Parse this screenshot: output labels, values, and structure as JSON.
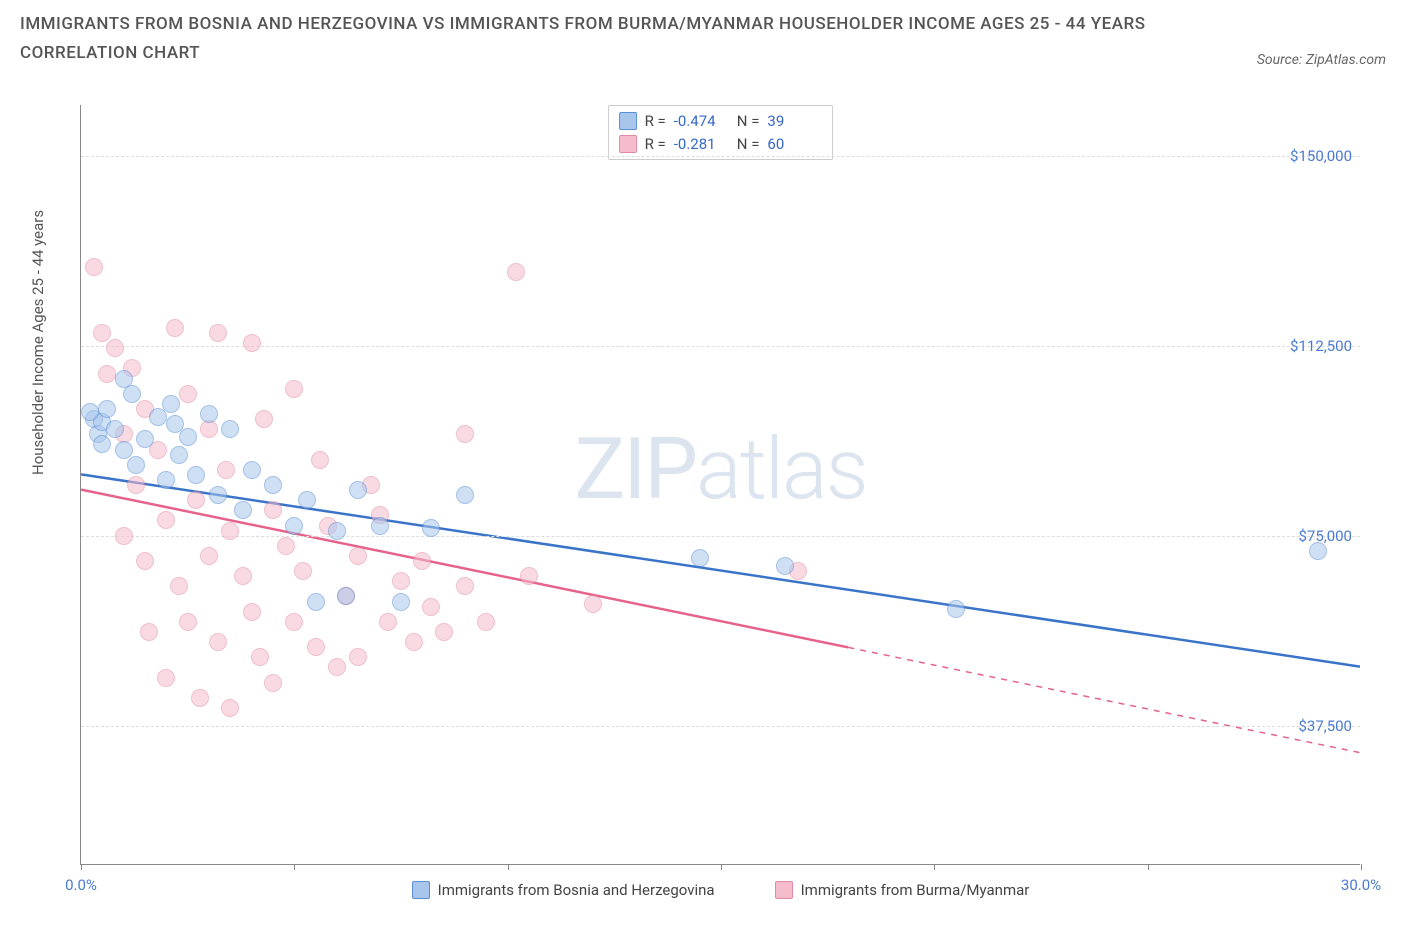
{
  "title": "IMMIGRANTS FROM BOSNIA AND HERZEGOVINA VS IMMIGRANTS FROM BURMA/MYANMAR HOUSEHOLDER INCOME AGES 25 - 44 YEARS CORRELATION CHART",
  "source": "Source: ZipAtlas.com",
  "watermark_a": "ZIP",
  "watermark_b": "atlas",
  "chart": {
    "type": "scatter",
    "ylabel": "Householder Income Ages 25 - 44 years",
    "xlim": [
      0,
      30
    ],
    "ylim": [
      10000,
      160000
    ],
    "xtick_positions": [
      0,
      5,
      10,
      15,
      20,
      25,
      30
    ],
    "xtick_labels": {
      "0": "0.0%",
      "30": "30.0%"
    },
    "ytick_positions": [
      37500,
      75000,
      112500,
      150000
    ],
    "ytick_labels": [
      "$37,500",
      "$75,000",
      "$112,500",
      "$150,000"
    ],
    "background_color": "#ffffff",
    "grid_color": "#dddddd",
    "axis_color": "#888888",
    "tick_label_color": "#4a7bd0",
    "point_radius": 9,
    "point_opacity": 0.55,
    "series": [
      {
        "name": "Immigrants from Bosnia and Herzegovina",
        "fill": "#a8c5ec",
        "stroke": "#5a8fd6",
        "line_color": "#3a74c9",
        "line_width": 2.5,
        "r_label": "R =",
        "r_value": "-0.474",
        "n_label": "N =",
        "n_value": "39",
        "trend": {
          "x1": 0,
          "y1": 87000,
          "x2": 30,
          "y2": 49000,
          "dash_from_x": 30
        },
        "points": [
          [
            0.3,
            98000
          ],
          [
            0.4,
            95000
          ],
          [
            0.5,
            97500
          ],
          [
            0.5,
            93000
          ],
          [
            0.6,
            100000
          ],
          [
            0.8,
            96000
          ],
          [
            1.0,
            92000
          ],
          [
            1.2,
            103000
          ],
          [
            1.3,
            89000
          ],
          [
            1.5,
            94000
          ],
          [
            1.8,
            98500
          ],
          [
            2.0,
            86000
          ],
          [
            2.1,
            101000
          ],
          [
            2.3,
            91000
          ],
          [
            2.5,
            94500
          ],
          [
            2.7,
            87000
          ],
          [
            3.0,
            99000
          ],
          [
            3.2,
            83000
          ],
          [
            3.5,
            96000
          ],
          [
            3.8,
            80000
          ],
          [
            4.0,
            88000
          ],
          [
            4.5,
            85000
          ],
          [
            5.0,
            77000
          ],
          [
            5.3,
            82000
          ],
          [
            5.5,
            62000
          ],
          [
            6.0,
            76000
          ],
          [
            6.2,
            63000
          ],
          [
            6.5,
            84000
          ],
          [
            7.0,
            77000
          ],
          [
            7.5,
            62000
          ],
          [
            8.2,
            76500
          ],
          [
            9.0,
            83000
          ],
          [
            14.5,
            70500
          ],
          [
            16.5,
            69000
          ],
          [
            20.5,
            60500
          ],
          [
            29.0,
            72000
          ],
          [
            0.2,
            99500
          ],
          [
            1.0,
            106000
          ],
          [
            2.2,
            97000
          ]
        ]
      },
      {
        "name": "Immigrants from Burma/Myanmar",
        "fill": "#f5bccc",
        "stroke": "#e38ba5",
        "line_color": "#e6628a",
        "line_width": 2.5,
        "r_label": "R =",
        "r_value": "-0.281",
        "n_label": "N =",
        "n_value": "60",
        "trend": {
          "x1": 0,
          "y1": 84000,
          "x2": 30,
          "y2": 32000,
          "dash_from_x": 18
        },
        "points": [
          [
            0.3,
            128000
          ],
          [
            0.5,
            115000
          ],
          [
            0.6,
            107000
          ],
          [
            0.8,
            112000
          ],
          [
            1.0,
            95000
          ],
          [
            1.0,
            75000
          ],
          [
            1.2,
            108000
          ],
          [
            1.3,
            85000
          ],
          [
            1.5,
            100000
          ],
          [
            1.5,
            70000
          ],
          [
            1.6,
            56000
          ],
          [
            1.8,
            92000
          ],
          [
            2.0,
            78000
          ],
          [
            2.0,
            47000
          ],
          [
            2.2,
            116000
          ],
          [
            2.3,
            65000
          ],
          [
            2.5,
            103000
          ],
          [
            2.5,
            58000
          ],
          [
            2.7,
            82000
          ],
          [
            2.8,
            43000
          ],
          [
            3.0,
            96000
          ],
          [
            3.0,
            71000
          ],
          [
            3.2,
            54000
          ],
          [
            3.4,
            88000
          ],
          [
            3.5,
            76000
          ],
          [
            3.5,
            41000
          ],
          [
            3.8,
            67000
          ],
          [
            4.0,
            113000
          ],
          [
            4.0,
            60000
          ],
          [
            4.2,
            51000
          ],
          [
            4.5,
            80000
          ],
          [
            4.5,
            46000
          ],
          [
            4.8,
            73000
          ],
          [
            5.0,
            104000
          ],
          [
            5.0,
            58000
          ],
          [
            5.2,
            68000
          ],
          [
            5.5,
            53000
          ],
          [
            5.8,
            77000
          ],
          [
            6.0,
            49000
          ],
          [
            6.2,
            63000
          ],
          [
            6.5,
            71000
          ],
          [
            6.5,
            51000
          ],
          [
            7.0,
            79000
          ],
          [
            7.2,
            58000
          ],
          [
            7.5,
            66000
          ],
          [
            7.8,
            54000
          ],
          [
            8.0,
            70000
          ],
          [
            8.2,
            61000
          ],
          [
            8.5,
            56000
          ],
          [
            9.0,
            95000
          ],
          [
            9.0,
            65000
          ],
          [
            9.5,
            58000
          ],
          [
            10.2,
            127000
          ],
          [
            10.5,
            67000
          ],
          [
            12.0,
            61500
          ],
          [
            3.2,
            115000
          ],
          [
            4.3,
            98000
          ],
          [
            5.6,
            90000
          ],
          [
            6.8,
            85000
          ],
          [
            16.8,
            68000
          ]
        ]
      }
    ]
  }
}
